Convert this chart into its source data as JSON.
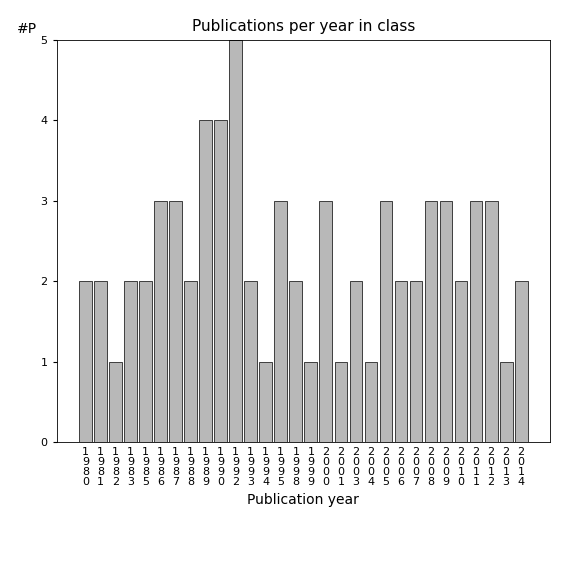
{
  "categories": [
    "1980",
    "1981",
    "1982",
    "1983",
    "1985",
    "1986",
    "1987",
    "1988",
    "1989",
    "1990",
    "1992",
    "1993",
    "1994",
    "1995",
    "1998",
    "1999",
    "2000",
    "2001",
    "2003",
    "2004",
    "2005",
    "2006",
    "2007",
    "2008",
    "2009",
    "2010",
    "2011",
    "2012",
    "2013",
    "2014"
  ],
  "values": [
    2,
    2,
    1,
    2,
    2,
    3,
    3,
    2,
    4,
    4,
    5,
    2,
    1,
    3,
    2,
    1,
    3,
    1,
    2,
    1,
    3,
    2,
    2,
    3,
    3,
    2,
    3,
    3,
    1,
    2
  ],
  "bar_color": "#b8b8b8",
  "bar_edge_color": "#000000",
  "title": "Publications per year in class",
  "xlabel": "Publication year",
  "ylabel": "#P",
  "ylim": [
    0,
    5
  ],
  "yticks": [
    0,
    1,
    2,
    3,
    4,
    5
  ],
  "title_fontsize": 11,
  "label_fontsize": 10,
  "tick_fontsize": 8,
  "background_color": "#ffffff"
}
